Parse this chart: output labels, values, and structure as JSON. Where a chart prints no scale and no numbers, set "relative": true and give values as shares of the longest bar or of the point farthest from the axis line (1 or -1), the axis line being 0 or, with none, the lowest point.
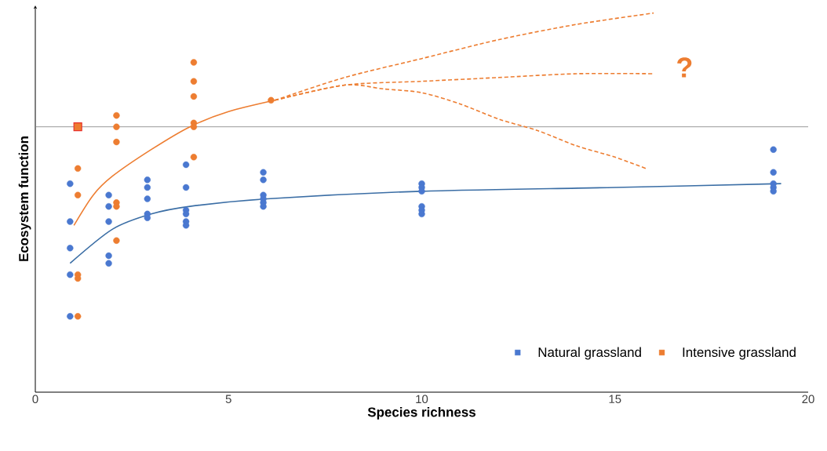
{
  "chart_data": {
    "type": "scatter",
    "relative": true,
    "xlabel": "Species richness",
    "ylabel": "Ecosystem function",
    "xlim": [
      0,
      20
    ],
    "xticks": [
      0,
      5,
      10,
      15,
      20
    ],
    "grid": false,
    "legend": "bottom right",
    "series": [
      {
        "name": "Natural grassland",
        "marker": "circle",
        "color": "#4a78d0",
        "x": [
          0.9,
          0.9,
          0.9,
          0.9,
          0.9,
          1.9,
          1.9,
          1.9,
          1.9,
          1.9,
          2.9,
          2.9,
          2.9,
          2.9,
          2.9,
          3.9,
          3.9,
          3.9,
          3.9,
          3.9,
          3.9,
          5.9,
          5.9,
          5.9,
          5.9,
          5.9,
          5.9,
          10,
          10,
          10,
          10,
          10,
          10,
          19.1,
          19.1,
          19.1,
          19.1,
          19.1
        ],
        "values": [
          0.55,
          0.45,
          0.38,
          0.31,
          0.2,
          0.52,
          0.49,
          0.45,
          0.36,
          0.34,
          0.56,
          0.54,
          0.51,
          0.47,
          0.46,
          0.6,
          0.54,
          0.48,
          0.47,
          0.45,
          0.44,
          0.58,
          0.56,
          0.52,
          0.51,
          0.5,
          0.49,
          0.55,
          0.54,
          0.53,
          0.49,
          0.48,
          0.47,
          0.64,
          0.58,
          0.55,
          0.54,
          0.53
        ]
      },
      {
        "name": "Intensive grassland",
        "marker": "circle",
        "color": "#ed7d31",
        "x": [
          1.1,
          1.1,
          1.1,
          1.1,
          1.1,
          2.1,
          2.1,
          2.1,
          2.1,
          2.1,
          2.1,
          4.1,
          4.1,
          4.1,
          4.1,
          4.1,
          4.1,
          6.1
        ],
        "values": [
          0.59,
          0.52,
          0.31,
          0.3,
          0.2,
          0.73,
          0.7,
          0.66,
          0.5,
          0.49,
          0.4,
          0.87,
          0.82,
          0.78,
          0.71,
          0.7,
          0.62,
          0.77
        ]
      },
      {
        "marker": "square",
        "color": "#e8302a",
        "x": [
          1.1
        ],
        "values": [
          0.7
        ]
      },
      {
        "type": "line",
        "marker": "none",
        "color": "#3b6ea5",
        "line_style": "solid",
        "x": [
          0.9,
          2,
          3,
          4,
          6,
          10,
          15,
          19.3
        ],
        "values": [
          0.34,
          0.43,
          0.47,
          0.49,
          0.51,
          0.53,
          0.54,
          0.55
        ]
      },
      {
        "type": "line",
        "marker": "none",
        "color": "#ed7d31",
        "line_style": "solid",
        "x": [
          1.0,
          1.5,
          2,
          3,
          4,
          5,
          6.2
        ],
        "values": [
          0.44,
          0.52,
          0.57,
          0.64,
          0.7,
          0.74,
          0.77
        ]
      },
      {
        "type": "line",
        "marker": "none",
        "color": "#ed7d31",
        "line_style": "dashed",
        "x": [
          6.2,
          8,
          10,
          12,
          14,
          16
        ],
        "values": [
          0.77,
          0.83,
          0.88,
          0.93,
          0.97,
          1.0
        ]
      },
      {
        "type": "line",
        "marker": "none",
        "color": "#ed7d31",
        "line_style": "dashed",
        "x": [
          6.2,
          8,
          10,
          12,
          14,
          16
        ],
        "values": [
          0.77,
          0.81,
          0.82,
          0.83,
          0.84,
          0.84
        ]
      },
      {
        "type": "line",
        "marker": "none",
        "color": "#ed7d31",
        "line_style": "dashed",
        "x": [
          6.2,
          8,
          9,
          10,
          11,
          12,
          13,
          14,
          15,
          15.8
        ],
        "values": [
          0.77,
          0.81,
          0.8,
          0.79,
          0.76,
          0.72,
          0.69,
          0.65,
          0.62,
          0.59
        ]
      }
    ],
    "ref_lines": [
      {
        "axis": "y",
        "value": 0.7,
        "color": "#808080"
      }
    ],
    "annotations": [
      "?"
    ]
  }
}
